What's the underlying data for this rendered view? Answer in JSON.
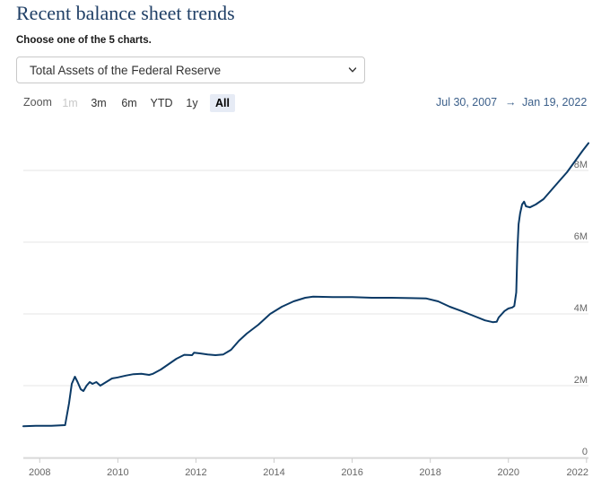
{
  "page": {
    "title": "Recent balance sheet trends",
    "subtitle": "Choose one of the 5 charts."
  },
  "selector": {
    "selected": "Total Assets of the Federal Reserve",
    "icon": "chevron-down-icon"
  },
  "zoom": {
    "label": "Zoom",
    "buttons": [
      {
        "label": "1m",
        "state": "disabled"
      },
      {
        "label": "3m",
        "state": "normal"
      },
      {
        "label": "6m",
        "state": "normal"
      },
      {
        "label": "YTD",
        "state": "normal"
      },
      {
        "label": "1y",
        "state": "normal"
      },
      {
        "label": "All",
        "state": "active"
      }
    ]
  },
  "range": {
    "from": "Jul 30, 2007",
    "arrow": "→",
    "to": "Jan 19, 2022"
  },
  "colors": {
    "line": "#0b3a66",
    "grid": "#e6e6e6",
    "title": "#1f3f66",
    "range_text": "#3b5f8a"
  },
  "chart_data": {
    "type": "line",
    "series": [
      {
        "x": [
          2007.58,
          2007.9,
          2008.3,
          2008.65,
          2008.75,
          2008.82,
          2008.9,
          2008.97,
          2009.05,
          2009.12,
          2009.2,
          2009.28,
          2009.35,
          2009.45,
          2009.55,
          2009.7,
          2009.85,
          2010.0,
          2010.2,
          2010.4,
          2010.6,
          2010.8,
          2010.9,
          2011.1,
          2011.3,
          2011.5,
          2011.7,
          2011.9,
          2011.95,
          2012.1,
          2012.3,
          2012.5,
          2012.7,
          2012.9,
          2013.1,
          2013.3,
          2013.6,
          2013.9,
          2014.2,
          2014.5,
          2014.8,
          2015.0,
          2015.5,
          2016.0,
          2016.5,
          2017.0,
          2017.5,
          2017.9,
          2018.2,
          2018.5,
          2018.8,
          2019.1,
          2019.4,
          2019.6,
          2019.7,
          2019.75,
          2019.9,
          2020.0,
          2020.1,
          2020.15,
          2020.2,
          2020.23,
          2020.26,
          2020.3,
          2020.35,
          2020.4,
          2020.45,
          2020.55,
          2020.7,
          2020.9,
          2021.1,
          2021.3,
          2021.5,
          2021.7,
          2021.9,
          2022.05
        ],
        "y": [
          0.87,
          0.88,
          0.88,
          0.9,
          1.5,
          2.05,
          2.25,
          2.1,
          1.9,
          1.85,
          2.0,
          2.1,
          2.05,
          2.1,
          2.0,
          2.1,
          2.2,
          2.23,
          2.28,
          2.32,
          2.33,
          2.3,
          2.33,
          2.45,
          2.6,
          2.75,
          2.86,
          2.85,
          2.92,
          2.9,
          2.87,
          2.85,
          2.87,
          3.0,
          3.25,
          3.45,
          3.7,
          4.0,
          4.2,
          4.35,
          4.45,
          4.48,
          4.47,
          4.47,
          4.45,
          4.45,
          4.44,
          4.43,
          4.35,
          4.2,
          4.08,
          3.95,
          3.82,
          3.77,
          3.78,
          3.9,
          4.08,
          4.15,
          4.18,
          4.22,
          4.6,
          5.8,
          6.5,
          6.8,
          7.05,
          7.13,
          7.0,
          6.97,
          7.05,
          7.2,
          7.45,
          7.7,
          7.95,
          8.25,
          8.55,
          8.76
        ]
      }
    ],
    "x_ticks": [
      "2008",
      "2010",
      "2012",
      "2014",
      "2016",
      "2018",
      "2020",
      "2022"
    ],
    "y_ticks": [
      "0",
      "2M",
      "4M",
      "6M",
      "8M"
    ],
    "xlim": [
      2007.58,
      2022.05
    ],
    "ylim": [
      0,
      9.2
    ],
    "grid": "horizontal",
    "legend": "none"
  }
}
